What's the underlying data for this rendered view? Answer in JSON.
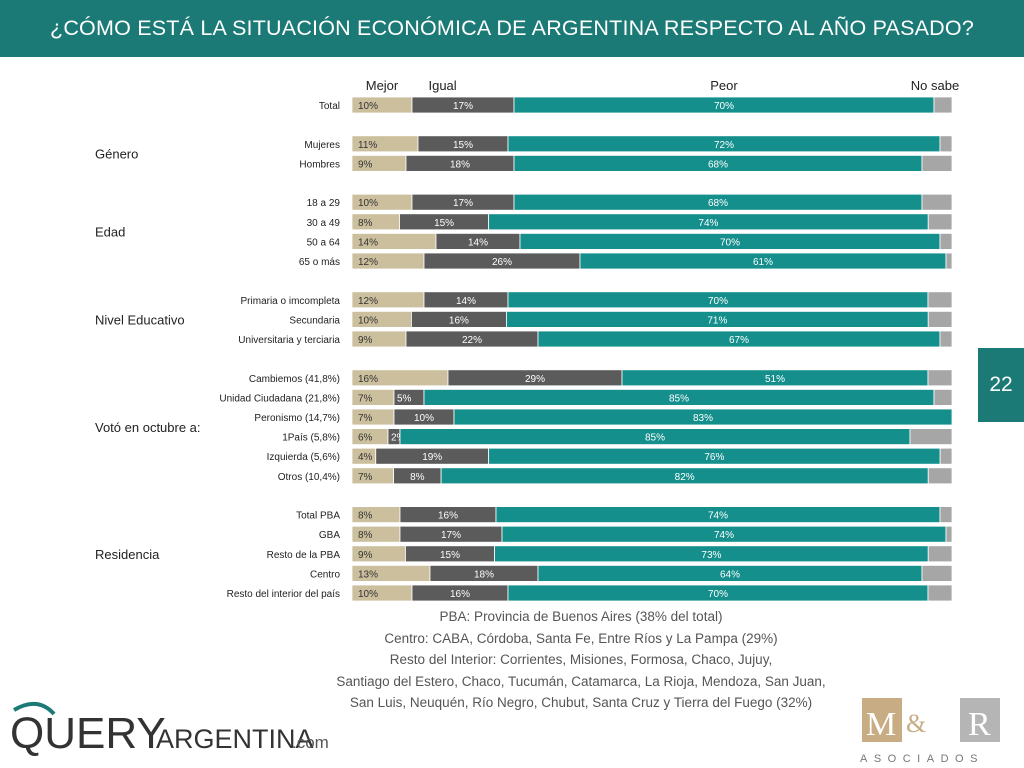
{
  "header": {
    "title": "¿CÓMO ESTÁ LA SITUACIÓN ECONÓMICA DE ARGENTINA RESPECTO AL AÑO PASADO?"
  },
  "page_number": "22",
  "notes": [
    "PBA: Provincia de Buenos Aires (38% del total)",
    "Centro: CABA, Córdoba, Santa Fe, Entre Ríos y La Pampa (29%)",
    "Resto del Interior: Corrientes, Misiones, Formosa, Chaco, Jujuy,",
    "Santiago del Estero, Chaco, Tucumán, Catamarca, La Rioja, Mendoza, San Juan,",
    "San Luis, Neuquén, Río Negro, Chubut, Santa Cruz y Tierra del Fuego (32%)"
  ],
  "logos": {
    "left_text": "QUERYARGENTINA.com",
    "right_text": "M&R",
    "right_sub": "ASOCIADOS"
  },
  "colors": {
    "header": "#1b7a76",
    "mejor": "#cbbf9d",
    "igual": "#5b5b5b",
    "peor": "#148f8c",
    "no_sabe": "#a6a6a6"
  },
  "chart_data": {
    "type": "bar",
    "orientation": "horizontal",
    "stacked": true,
    "normalized": true,
    "series": [
      {
        "name": "Mejor",
        "color": "#cbbf9d"
      },
      {
        "name": "Igual",
        "color": "#5b5b5b"
      },
      {
        "name": "Peor",
        "color": "#148f8c"
      },
      {
        "name": "No sabe",
        "color": "#a6a6a6"
      }
    ],
    "groups": [
      {
        "label": "",
        "rows": [
          {
            "label": "Total",
            "values": [
              10,
              17,
              70,
              3
            ]
          }
        ]
      },
      {
        "label": "Género",
        "rows": [
          {
            "label": "Mujeres",
            "values": [
              11,
              15,
              72,
              2
            ]
          },
          {
            "label": "Hombres",
            "values": [
              9,
              18,
              68,
              5
            ]
          }
        ]
      },
      {
        "label": "Edad",
        "rows": [
          {
            "label": "18 a 29",
            "values": [
              10,
              17,
              68,
              5
            ]
          },
          {
            "label": "30 a 49",
            "values": [
              8,
              15,
              74,
              4
            ]
          },
          {
            "label": "50 a 64",
            "values": [
              14,
              14,
              70,
              2
            ]
          },
          {
            "label": "65 o más",
            "values": [
              12,
              26,
              61,
              1
            ]
          }
        ]
      },
      {
        "label": "Nivel Educativo",
        "rows": [
          {
            "label": "Primaria o imcompleta",
            "values": [
              12,
              14,
              70,
              4
            ]
          },
          {
            "label": "Secundaria",
            "values": [
              10,
              16,
              71,
              4
            ]
          },
          {
            "label": "Universitaria y terciaria",
            "values": [
              9,
              22,
              67,
              2
            ]
          }
        ]
      },
      {
        "label": "Votó en octubre a:",
        "rows": [
          {
            "label": "Cambiemos (41,8%)",
            "values": [
              16,
              29,
              51,
              4
            ]
          },
          {
            "label": "Unidad Ciudadana (21,8%)",
            "values": [
              7,
              5,
              85,
              3
            ]
          },
          {
            "label": "Peronismo (14,7%)",
            "values": [
              7,
              10,
              83,
              0
            ]
          },
          {
            "label": "1País (5,8%)",
            "values": [
              6,
              2,
              85,
              7
            ]
          },
          {
            "label": "Izquierda (5,6%)",
            "values": [
              4,
              19,
              76,
              2
            ]
          },
          {
            "label": "Otros (10,4%)",
            "values": [
              7,
              8,
              82,
              4
            ]
          }
        ]
      },
      {
        "label": "Residencia",
        "rows": [
          {
            "label": "Total PBA",
            "values": [
              8,
              16,
              74,
              2
            ]
          },
          {
            "label": "GBA",
            "values": [
              8,
              17,
              74,
              1
            ]
          },
          {
            "label": "Resto de la PBA",
            "values": [
              9,
              15,
              73,
              4
            ]
          },
          {
            "label": "Centro",
            "values": [
              13,
              18,
              64,
              5
            ]
          },
          {
            "label": "Resto del interior del país",
            "values": [
              10,
              16,
              70,
              4
            ]
          }
        ]
      }
    ],
    "legend_placement": "top",
    "grid": false
  }
}
